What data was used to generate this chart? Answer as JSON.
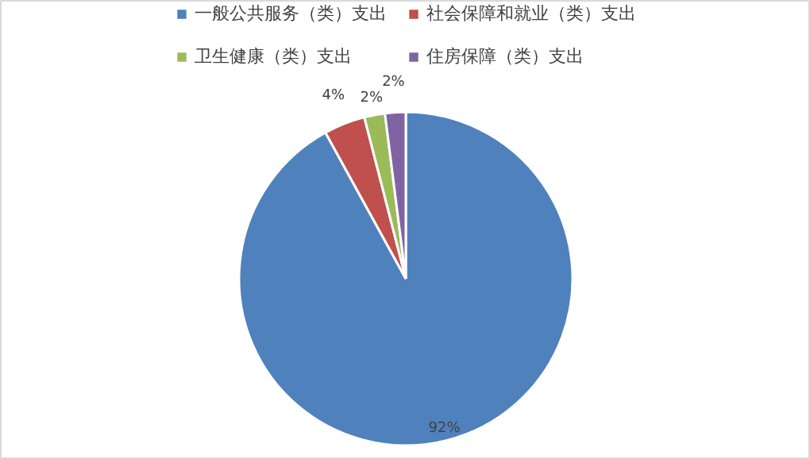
{
  "chart_data": {
    "type": "pie",
    "categories": [
      "一般公共服务（类）支出",
      "社会保障和就业（类）支出",
      "卫生健康（类）支出",
      "住房保障（类）支出"
    ],
    "values": [
      92,
      4,
      2,
      2
    ],
    "colors": [
      "#4f81bd",
      "#c0504d",
      "#9bbb59",
      "#8064a2"
    ],
    "value_labels": [
      "92%",
      "4%",
      "2%",
      "2%"
    ],
    "legend": "top"
  }
}
